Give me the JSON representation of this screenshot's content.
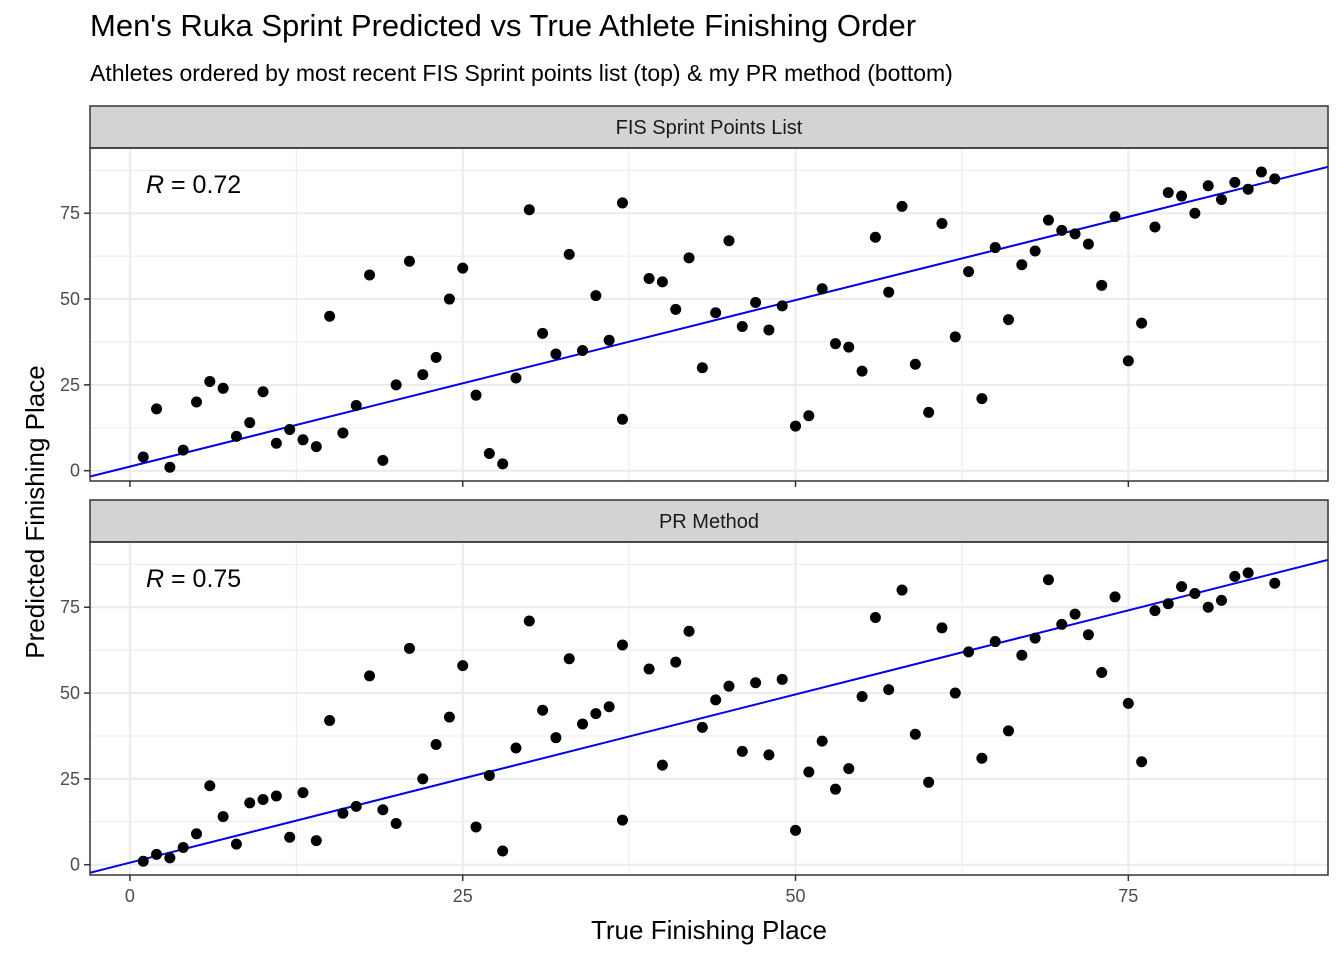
{
  "title": "Men's Ruka Sprint Predicted vs True Athlete Finishing Order",
  "subtitle": "Athletes ordered by most recent FIS Sprint points list (top) & my PR method (bottom)",
  "xlabel": "True Finishing Place",
  "ylabel": "Predicted Finishing Place",
  "colors": {
    "point": "#000000",
    "line": "#0000ee",
    "strip": "#d3d3d3",
    "grid": "#ebebeb"
  },
  "chart_data": [
    {
      "type": "scatter",
      "panel": "FIS Sprint Points List",
      "annotation": {
        "label": "R",
        "value": "= 0.72"
      },
      "xlim": [
        -3,
        90
      ],
      "ylim": [
        -3,
        94
      ],
      "x_ticks": [
        0,
        25,
        50,
        75
      ],
      "y_ticks": [
        0,
        25,
        50,
        75
      ],
      "fit_line": {
        "intercept": 1.2,
        "slope": 0.97
      },
      "x": [
        1,
        2,
        3,
        4,
        5,
        6,
        7,
        8,
        9,
        10,
        11,
        12,
        13,
        14,
        15,
        16,
        17,
        18,
        19,
        20,
        21,
        22,
        23,
        24,
        25,
        26,
        27,
        28,
        29,
        30,
        31,
        32,
        33,
        34,
        35,
        36,
        37,
        37,
        39,
        40,
        41,
        42,
        43,
        44,
        45,
        46,
        47,
        48,
        49,
        50,
        51,
        52,
        53,
        54,
        55,
        56,
        57,
        58,
        59,
        60,
        61,
        62,
        63,
        64,
        65,
        66,
        67,
        68,
        69,
        70,
        71,
        72,
        73,
        74,
        75,
        76,
        77,
        78,
        79,
        80,
        81,
        82,
        83,
        84,
        85,
        86
      ],
      "y": [
        4,
        18,
        1,
        6,
        20,
        26,
        24,
        10,
        14,
        23,
        8,
        12,
        9,
        7,
        45,
        11,
        19,
        57,
        3,
        25,
        61,
        28,
        33,
        50,
        59,
        22,
        5,
        2,
        27,
        76,
        40,
        34,
        63,
        35,
        51,
        38,
        78,
        15,
        56,
        55,
        47,
        62,
        30,
        46,
        67,
        42,
        49,
        41,
        48,
        13,
        16,
        53,
        37,
        36,
        29,
        68,
        52,
        77,
        31,
        17,
        72,
        39,
        58,
        21,
        65,
        44,
        60,
        64,
        73,
        70,
        69,
        66,
        54,
        74,
        32,
        43,
        71,
        81,
        80,
        75,
        83,
        79,
        84,
        82,
        87,
        85
      ]
    },
    {
      "type": "scatter",
      "panel": "PR Method",
      "annotation": {
        "label": "R",
        "value": "= 0.75"
      },
      "xlim": [
        -3,
        90
      ],
      "ylim": [
        -3,
        94
      ],
      "x_ticks": [
        0,
        25,
        50,
        75
      ],
      "y_ticks": [
        0,
        25,
        50,
        75
      ],
      "fit_line": {
        "intercept": 0.6,
        "slope": 0.98
      },
      "x": [
        1,
        2,
        3,
        4,
        5,
        6,
        7,
        8,
        9,
        10,
        11,
        12,
        13,
        14,
        15,
        16,
        17,
        18,
        19,
        20,
        21,
        22,
        23,
        24,
        25,
        26,
        27,
        28,
        29,
        30,
        31,
        32,
        33,
        34,
        35,
        36,
        37,
        37,
        39,
        40,
        41,
        42,
        43,
        44,
        45,
        46,
        47,
        48,
        49,
        50,
        51,
        52,
        53,
        54,
        55,
        56,
        57,
        58,
        59,
        60,
        61,
        62,
        63,
        64,
        65,
        66,
        67,
        68,
        69,
        70,
        71,
        72,
        73,
        74,
        75,
        76,
        77,
        78,
        79,
        80,
        81,
        82,
        83,
        84,
        86
      ],
      "y": [
        1,
        3,
        2,
        5,
        9,
        23,
        14,
        6,
        18,
        19,
        20,
        8,
        21,
        7,
        42,
        15,
        17,
        55,
        16,
        12,
        63,
        25,
        35,
        43,
        58,
        11,
        26,
        4,
        34,
        71,
        45,
        37,
        60,
        41,
        44,
        46,
        64,
        13,
        57,
        29,
        59,
        68,
        40,
        48,
        52,
        33,
        53,
        32,
        54,
        10,
        27,
        36,
        22,
        28,
        49,
        72,
        51,
        80,
        38,
        24,
        69,
        50,
        62,
        31,
        65,
        39,
        61,
        66,
        83,
        70,
        73,
        67,
        56,
        78,
        47,
        30,
        74,
        76,
        81,
        79,
        75,
        77,
        84,
        85,
        82
      ]
    }
  ]
}
